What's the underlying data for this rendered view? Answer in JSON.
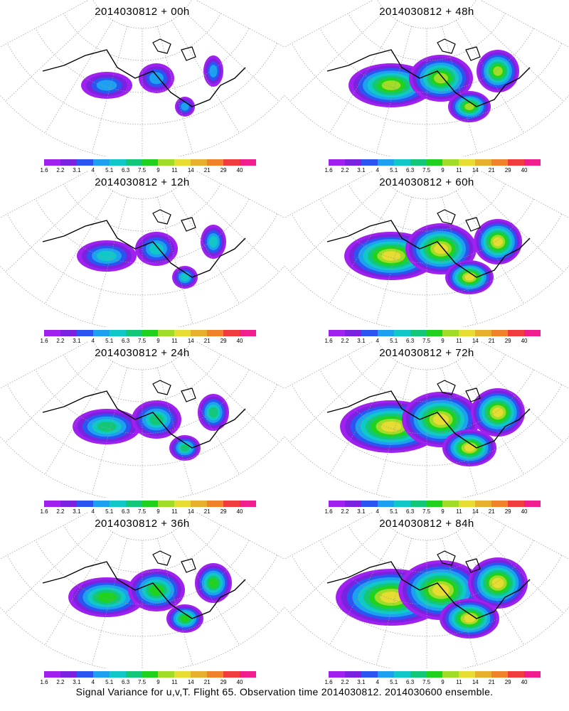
{
  "panels": [
    {
      "title": "2014030812 + 00h"
    },
    {
      "title": "2014030812 + 48h"
    },
    {
      "title": "2014030812 + 12h"
    },
    {
      "title": "2014030812 + 60h"
    },
    {
      "title": "2014030812 + 24h"
    },
    {
      "title": "2014030812 + 72h"
    },
    {
      "title": "2014030812 + 36h"
    },
    {
      "title": "2014030812 + 84h"
    }
  ],
  "colorbar": {
    "tick_labels": [
      "1.6",
      "2.2",
      "3.1",
      "4",
      "5.1",
      "6.3",
      "7.5",
      "9",
      "11",
      "14",
      "21",
      "29",
      "40"
    ],
    "colors": [
      "#a020f0",
      "#7a22e0",
      "#2a55f0",
      "#1ea0f0",
      "#10c8c8",
      "#12c878",
      "#1ed21e",
      "#a0dc28",
      "#e6dc32",
      "#e6af2d",
      "#f08228",
      "#f03c3c",
      "#f01e8c"
    ]
  },
  "caption": "Signal Variance for u,v,T. Flight 65. Observation time 2014030812. 2014030600 ensemble."
}
